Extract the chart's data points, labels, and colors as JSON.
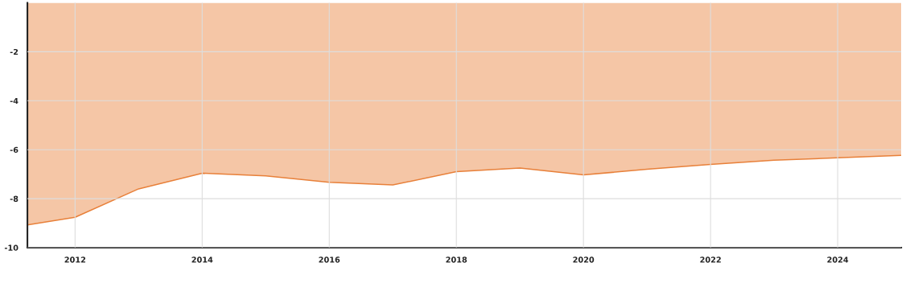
{
  "chart_data": {
    "type": "area",
    "x": [
      2011.25,
      2012,
      2013,
      2014,
      2015,
      2016,
      2017,
      2018,
      2019,
      2020,
      2021,
      2022,
      2023,
      2024,
      2025
    ],
    "series": [
      {
        "color": "#e8803a",
        "values": [
          -9.07,
          -8.76,
          -7.6,
          -6.96,
          -7.07,
          -7.33,
          -7.44,
          -6.9,
          -6.75,
          -7.03,
          -6.8,
          -6.6,
          -6.43,
          -6.33,
          -6.23
        ]
      }
    ],
    "xlim": [
      2011.25,
      2025
    ],
    "xticks": [
      2012,
      2014,
      2016,
      2018,
      2020,
      2022,
      2024
    ],
    "ylim": [
      -10,
      0
    ],
    "yticks": [
      -2,
      -4,
      -6,
      -8,
      -10
    ],
    "grid": true
  }
}
